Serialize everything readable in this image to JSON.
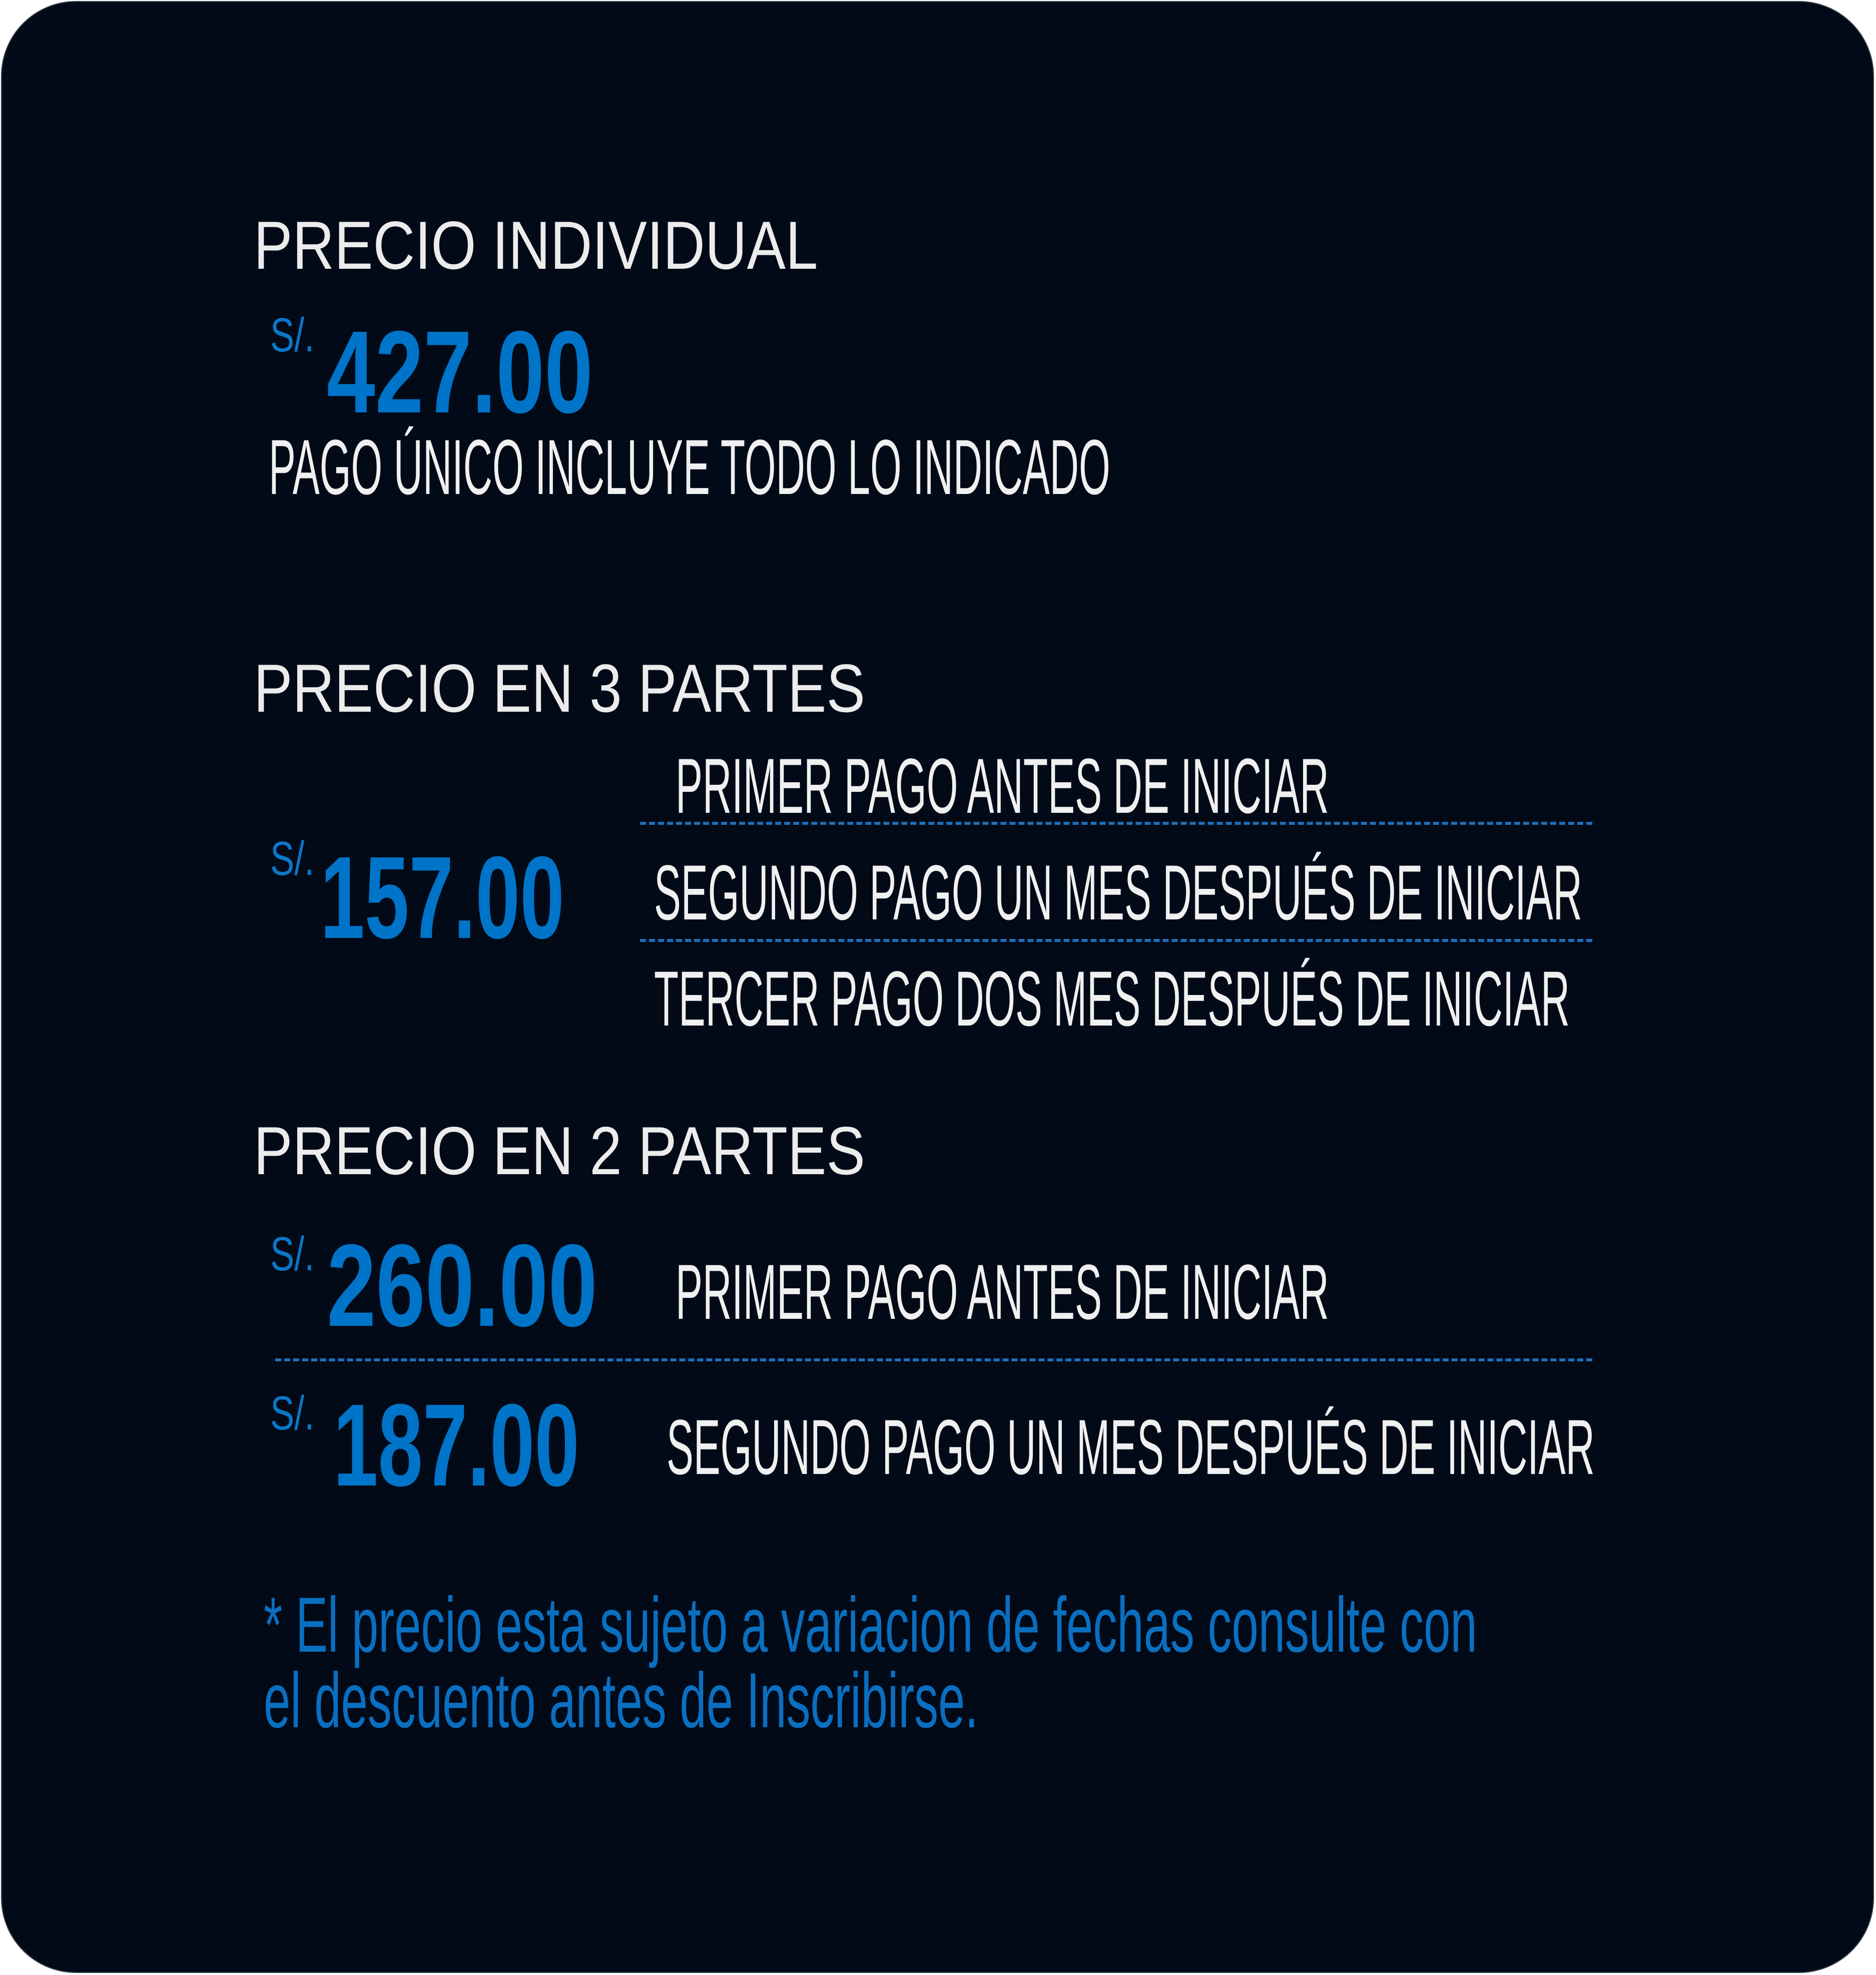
{
  "colors": {
    "background": "#020a18",
    "accent": "#0074c8",
    "text": "#ececec"
  },
  "individual": {
    "title": "PRECIO INDIVIDUAL",
    "currency": "S/.",
    "amount": "427.00",
    "description": "PAGO ÚNICO INCLUYE TODO LO INDICADO"
  },
  "three_parts": {
    "title": "PRECIO EN 3 PARTES",
    "currency": "S/.",
    "amount": "157.00",
    "payments": [
      "PRIMER PAGO ANTES DE INICIAR",
      "SEGUNDO PAGO UN MES DESPUÉS DE INICIAR",
      "TERCER PAGO DOS MES DESPUÉS DE INICIAR"
    ]
  },
  "two_parts": {
    "title": "PRECIO EN 2 PARTES",
    "payments": [
      {
        "currency": "S/.",
        "amount": "260.00",
        "label": "PRIMER PAGO ANTES DE INICIAR"
      },
      {
        "currency": "S/.",
        "amount": "187.00",
        "label": "SEGUNDO PAGO UN MES DESPUÉS DE INICIAR"
      }
    ]
  },
  "note": {
    "line1": "* El precio esta sujeto a variacion de fechas consulte con",
    "line2": "el descuento antes de Inscribirse."
  }
}
